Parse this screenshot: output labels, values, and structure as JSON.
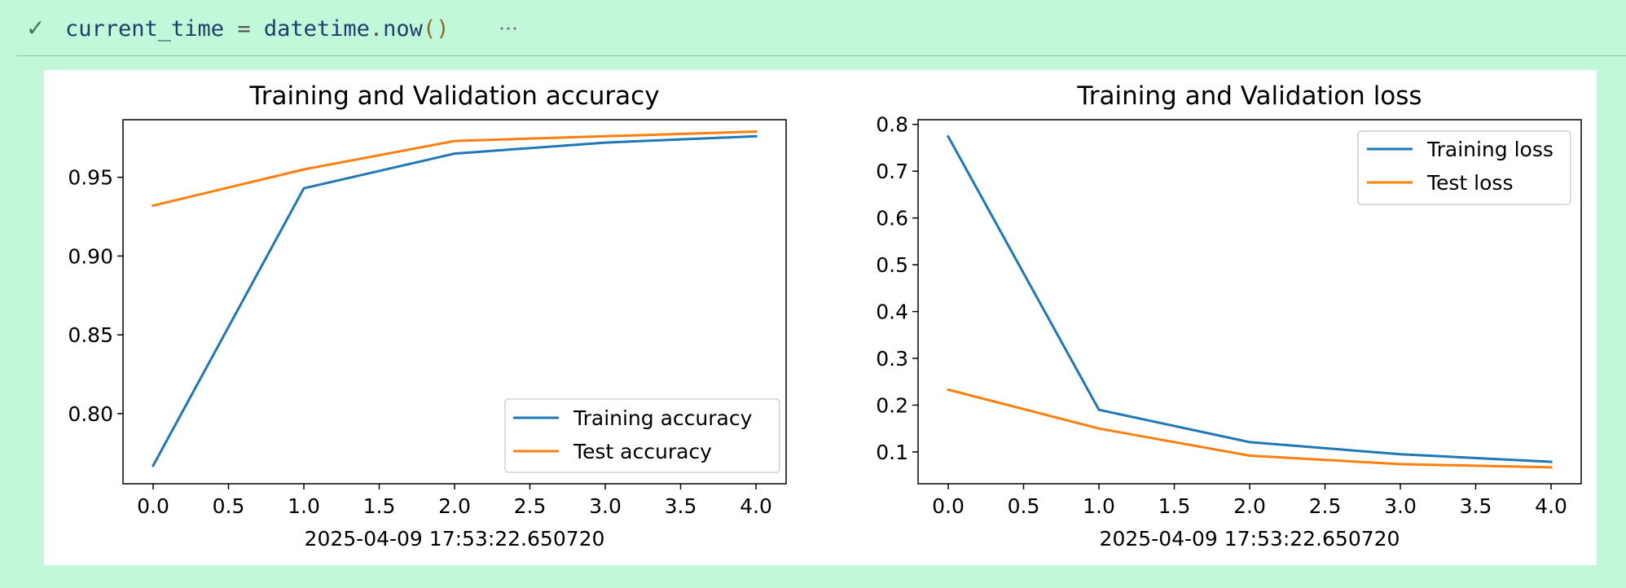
{
  "cell": {
    "status_icon": "check-icon",
    "code_tokens": {
      "var": "current_time",
      "op": " = ",
      "obj": "datetime",
      "dot": ".",
      "fn": "now",
      "paren": "()"
    },
    "more_icon": "ellipsis-icon"
  },
  "colors": {
    "background": "#c1f8d9",
    "training": "#1f77b4",
    "test": "#ff7f0e"
  },
  "chart_data": [
    {
      "type": "line",
      "title": "Training and Validation accuracy",
      "xlabel": "2025-04-09 17:53:22.650720",
      "ylabel": "",
      "x": [
        0,
        1,
        2,
        3,
        4
      ],
      "xticks": [
        "0.0",
        "0.5",
        "1.0",
        "1.5",
        "2.0",
        "2.5",
        "3.0",
        "3.5",
        "4.0"
      ],
      "yticks": [
        "0.80",
        "0.85",
        "0.90",
        "0.95"
      ],
      "xlim": [
        -0.2,
        4.2
      ],
      "ylim": [
        0.7555,
        0.9865
      ],
      "series": [
        {
          "name": "Training accuracy",
          "color": "#1f77b4",
          "values": [
            0.767,
            0.943,
            0.965,
            0.972,
            0.976
          ]
        },
        {
          "name": "Test accuracy",
          "color": "#ff7f0e",
          "values": [
            0.932,
            0.955,
            0.973,
            0.976,
            0.979
          ]
        }
      ],
      "legend": "lower right",
      "grid": false
    },
    {
      "type": "line",
      "title": "Training and Validation loss",
      "xlabel": "2025-04-09 17:53:22.650720",
      "ylabel": "",
      "x": [
        0,
        1,
        2,
        3,
        4
      ],
      "xticks": [
        "0.0",
        "0.5",
        "1.0",
        "1.5",
        "2.0",
        "2.5",
        "3.0",
        "3.5",
        "4.0"
      ],
      "yticks": [
        "0.1",
        "0.2",
        "0.3",
        "0.4",
        "0.5",
        "0.6",
        "0.7",
        "0.8"
      ],
      "xlim": [
        -0.2,
        4.2
      ],
      "ylim": [
        0.032,
        0.81
      ],
      "series": [
        {
          "name": "Training loss",
          "color": "#1f77b4",
          "values": [
            0.774,
            0.19,
            0.121,
            0.095,
            0.079
          ]
        },
        {
          "name": "Test loss",
          "color": "#ff7f0e",
          "values": [
            0.233,
            0.15,
            0.092,
            0.074,
            0.067
          ]
        }
      ],
      "legend": "upper right",
      "grid": false
    }
  ]
}
